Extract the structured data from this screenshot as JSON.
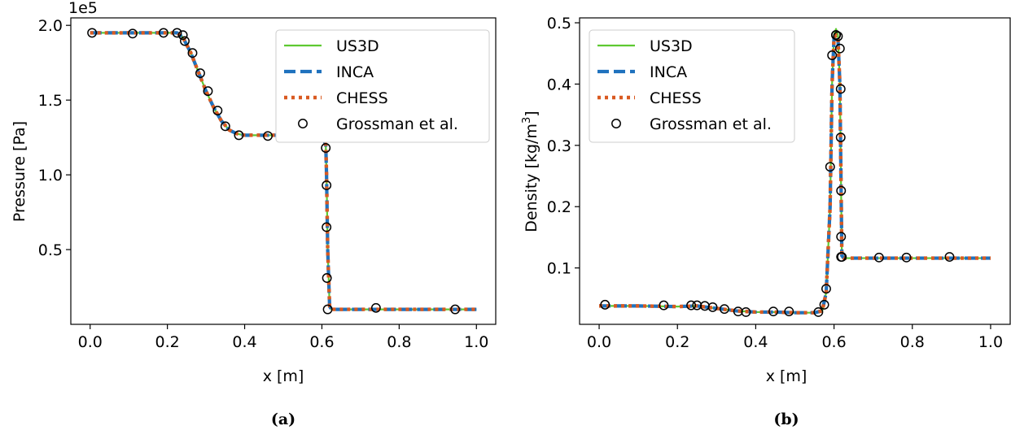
{
  "colors": {
    "US3D": "#5ec931",
    "INCA": "#1f72be",
    "CHESS": "#d95a21",
    "Grossman": "#000000"
  },
  "legend_entries": [
    "US3D",
    "INCA",
    "CHESS",
    "Grossman et al."
  ],
  "chart_data": [
    {
      "type": "line",
      "panel": "(a)",
      "caption": "(a)",
      "xlabel": "x [m]",
      "ylabel": "Pressure [Pa]",
      "y_offset_label": "1e5",
      "xlim": [
        -0.05,
        1.05
      ],
      "ylim": [
        0.0,
        2.05
      ],
      "x_ticks": [
        0.0,
        0.2,
        0.4,
        0.6,
        0.8,
        1.0
      ],
      "x_tick_labels": [
        "0.0",
        "0.2",
        "0.4",
        "0.6",
        "0.8",
        "1.0"
      ],
      "y_ticks": [
        0.5,
        1.0,
        1.5,
        2.0
      ],
      "y_tick_labels": [
        "0.5",
        "1.0",
        "1.5",
        "2.0"
      ],
      "legend_position": "top-right",
      "grid": false,
      "series": [
        {
          "name": "US3D",
          "style": "solid",
          "x": [
            0.0,
            0.225,
            0.24,
            0.26,
            0.28,
            0.3,
            0.32,
            0.34,
            0.36,
            0.38,
            0.4,
            0.6,
            0.61,
            0.612,
            0.615,
            0.62,
            0.625,
            1.0
          ],
          "y": [
            1.95,
            1.95,
            1.92,
            1.82,
            1.69,
            1.56,
            1.45,
            1.36,
            1.3,
            1.275,
            1.265,
            1.265,
            1.2,
            1.0,
            0.5,
            0.12,
            0.1,
            0.1
          ]
        },
        {
          "name": "INCA",
          "style": "dashed",
          "x": [
            0.0,
            0.225,
            0.24,
            0.26,
            0.28,
            0.3,
            0.32,
            0.34,
            0.36,
            0.38,
            0.4,
            0.6,
            0.61,
            0.612,
            0.615,
            0.62,
            0.625,
            1.0
          ],
          "y": [
            1.95,
            1.95,
            1.92,
            1.82,
            1.69,
            1.56,
            1.45,
            1.36,
            1.3,
            1.275,
            1.265,
            1.265,
            1.2,
            1.0,
            0.5,
            0.12,
            0.1,
            0.1
          ]
        },
        {
          "name": "CHESS",
          "style": "dotted",
          "x": [
            0.0,
            0.225,
            0.24,
            0.26,
            0.28,
            0.3,
            0.32,
            0.34,
            0.36,
            0.38,
            0.4,
            0.6,
            0.61,
            0.612,
            0.615,
            0.62,
            0.625,
            1.0
          ],
          "y": [
            1.95,
            1.95,
            1.92,
            1.82,
            1.69,
            1.56,
            1.45,
            1.36,
            1.3,
            1.275,
            1.265,
            1.265,
            1.2,
            1.0,
            0.5,
            0.12,
            0.1,
            0.1
          ]
        },
        {
          "name": "Grossman et al.",
          "style": "markers",
          "x": [
            0.005,
            0.11,
            0.19,
            0.225,
            0.24,
            0.245,
            0.265,
            0.285,
            0.305,
            0.33,
            0.35,
            0.385,
            0.46,
            0.545,
            0.605,
            0.61,
            0.612,
            0.612,
            0.613,
            0.615,
            0.74,
            0.945
          ],
          "y": [
            1.95,
            1.945,
            1.95,
            1.95,
            1.935,
            1.895,
            1.815,
            1.68,
            1.56,
            1.43,
            1.325,
            1.265,
            1.26,
            1.255,
            1.26,
            1.18,
            0.93,
            0.65,
            0.31,
            0.1,
            0.11,
            0.1
          ]
        }
      ]
    },
    {
      "type": "line",
      "panel": "(b)",
      "caption": "(b)",
      "xlabel": "x [m]",
      "ylabel": "Density [kg/m",
      "ylabel_superscript": "3",
      "ylabel_suffix": "]",
      "xlim": [
        -0.05,
        1.05
      ],
      "ylim": [
        0.008,
        0.508
      ],
      "x_ticks": [
        0.0,
        0.2,
        0.4,
        0.6,
        0.8,
        1.0
      ],
      "x_tick_labels": [
        "0.0",
        "0.2",
        "0.4",
        "0.6",
        "0.8",
        "1.0"
      ],
      "y_ticks": [
        0.1,
        0.2,
        0.3,
        0.4,
        0.5
      ],
      "y_tick_labels": [
        "0.1",
        "0.2",
        "0.3",
        "0.4",
        "0.5"
      ],
      "legend_position": "top-left",
      "grid": false,
      "series": [
        {
          "name": "US3D",
          "style": "solid",
          "x": [
            0.0,
            0.1,
            0.2,
            0.25,
            0.3,
            0.35,
            0.4,
            0.45,
            0.5,
            0.55,
            0.57,
            0.58,
            0.59,
            0.595,
            0.6,
            0.605,
            0.61,
            0.615,
            0.62,
            0.625,
            0.63,
            1.0
          ],
          "y": [
            0.038,
            0.038,
            0.037,
            0.038,
            0.034,
            0.03,
            0.028,
            0.028,
            0.027,
            0.027,
            0.03,
            0.06,
            0.2,
            0.4,
            0.48,
            0.49,
            0.48,
            0.4,
            0.12,
            0.116,
            0.116,
            0.116
          ]
        },
        {
          "name": "INCA",
          "style": "dashed",
          "x": [
            0.0,
            0.1,
            0.2,
            0.25,
            0.3,
            0.35,
            0.4,
            0.45,
            0.5,
            0.55,
            0.57,
            0.58,
            0.59,
            0.595,
            0.6,
            0.605,
            0.61,
            0.615,
            0.62,
            0.625,
            0.63,
            1.0
          ],
          "y": [
            0.038,
            0.038,
            0.037,
            0.038,
            0.034,
            0.03,
            0.028,
            0.028,
            0.027,
            0.027,
            0.03,
            0.06,
            0.2,
            0.4,
            0.475,
            0.48,
            0.475,
            0.4,
            0.12,
            0.116,
            0.116,
            0.116
          ]
        },
        {
          "name": "CHESS",
          "style": "dotted",
          "x": [
            0.0,
            0.1,
            0.2,
            0.25,
            0.3,
            0.35,
            0.4,
            0.45,
            0.5,
            0.55,
            0.57,
            0.58,
            0.59,
            0.595,
            0.6,
            0.605,
            0.61,
            0.615,
            0.62,
            0.625,
            0.63,
            1.0
          ],
          "y": [
            0.038,
            0.038,
            0.037,
            0.038,
            0.034,
            0.03,
            0.028,
            0.028,
            0.027,
            0.027,
            0.03,
            0.06,
            0.2,
            0.4,
            0.475,
            0.48,
            0.475,
            0.4,
            0.12,
            0.116,
            0.116,
            0.116
          ]
        },
        {
          "name": "Grossman et al.",
          "style": "markers",
          "x": [
            0.015,
            0.165,
            0.235,
            0.25,
            0.27,
            0.29,
            0.32,
            0.355,
            0.375,
            0.445,
            0.485,
            0.56,
            0.575,
            0.58,
            0.59,
            0.595,
            0.605,
            0.605,
            0.61,
            0.615,
            0.617,
            0.617,
            0.618,
            0.618,
            0.618,
            0.62,
            0.715,
            0.785,
            0.895
          ],
          "y": [
            0.04,
            0.039,
            0.039,
            0.039,
            0.038,
            0.036,
            0.033,
            0.029,
            0.028,
            0.029,
            0.029,
            0.028,
            0.04,
            0.066,
            0.265,
            0.447,
            0.48,
            0.48,
            0.478,
            0.458,
            0.392,
            0.313,
            0.226,
            0.151,
            0.118,
            0.118,
            0.117,
            0.117,
            0.118
          ]
        }
      ]
    }
  ]
}
